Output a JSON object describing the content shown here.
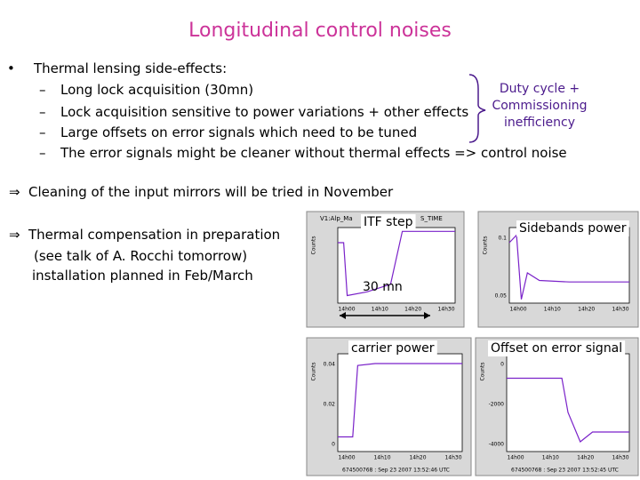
{
  "title": "Longitudinal control noises",
  "bullets": {
    "main": "Thermal lensing side-effects:",
    "items": [
      "Long lock acquisition (30mn)",
      "Lock acquisition sensitive to power variations + other effects",
      "Large offsets on error signals which need to be tuned",
      "The error signals might be cleaner without thermal effects => control noise"
    ]
  },
  "brace_note": [
    "Duty cycle +",
    "Commissioning",
    "inefficiency"
  ],
  "arrows": {
    "cleaning": "Cleaning of the input mirrors will be tried in November",
    "compensation": [
      "Thermal compensation in preparation",
      "(see talk of A. Rocchi tomorrow)",
      "installation planned in Feb/March"
    ]
  },
  "plots": [
    {
      "label": "ITF step",
      "header": "V1:Alp_Ma",
      "header_right": "S_TIME",
      "y_title": "Counts",
      "yticks": [],
      "xticks": [
        "14h00",
        "14h10",
        "14h20",
        "14h30"
      ],
      "annotation": "30 mn"
    },
    {
      "label": "Sidebands power",
      "y_title": "Counts",
      "yticks": [
        "0.1",
        "0.05"
      ],
      "xticks": [
        "14h00",
        "14h10",
        "14h20",
        "14h30"
      ]
    },
    {
      "label": "carrier power",
      "y_title": "Counts",
      "yticks": [
        "0.04",
        "0.02",
        "0"
      ],
      "xticks": [
        "14h00",
        "14h10",
        "14h20",
        "14h30"
      ],
      "footer": "674500768 : Sep 23 2007 13:52:46 UTC"
    },
    {
      "label": "Offset on error signal",
      "y_title": "Counts",
      "yticks": [
        "0",
        "-2000",
        "-4000"
      ],
      "xticks": [
        "14h00",
        "14h10",
        "14h20",
        "14h30"
      ],
      "footer": "674500768 : Sep 23 2007 13:52:45 UTC"
    }
  ]
}
